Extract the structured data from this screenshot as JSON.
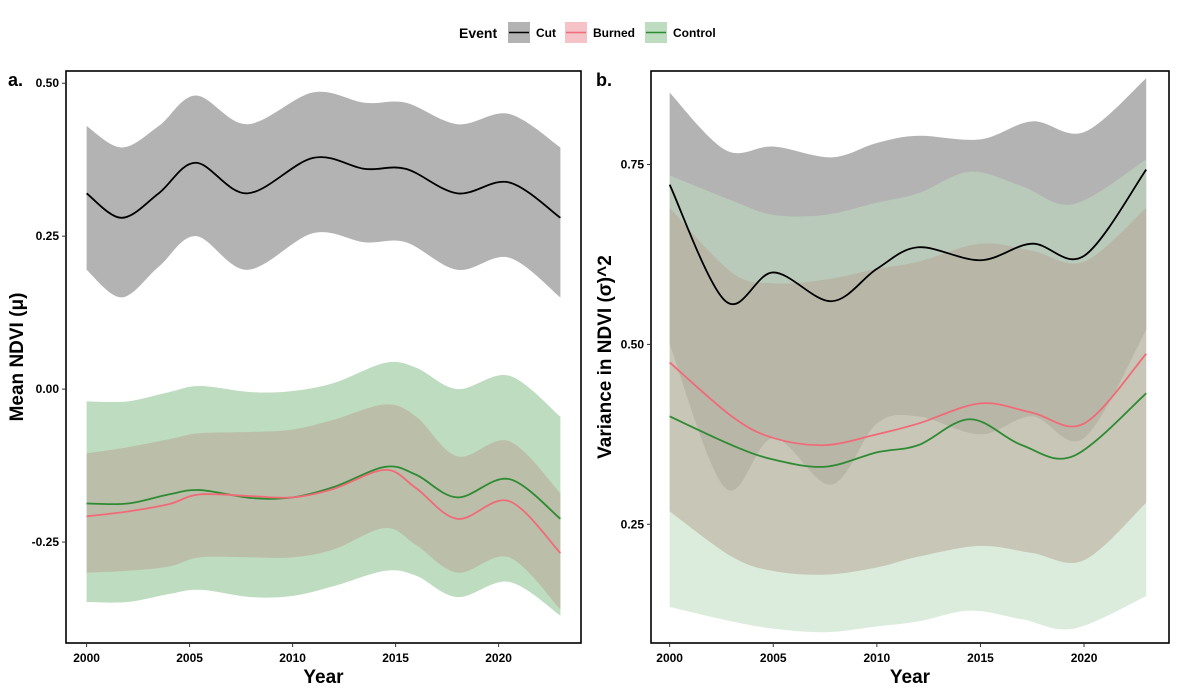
{
  "legend": {
    "title": "Event",
    "entries": [
      {
        "label": "Cut",
        "line": "#000000",
        "fill": "#b3b3b3"
      },
      {
        "label": "Burned",
        "line": "#f06a78",
        "fill": "#f5c2c8"
      },
      {
        "label": "Control",
        "line": "#2e8b34",
        "fill": "#bedcc0"
      }
    ]
  },
  "chart_data": [
    {
      "type": "area",
      "panel_label": "a.",
      "xlabel": "Year",
      "ylabel": "Mean NDVI (μ)",
      "xlim": [
        1999,
        2024
      ],
      "ylim": [
        -0.415,
        0.52
      ],
      "x_ticks": [
        2000,
        2005,
        2010,
        2015,
        2020
      ],
      "y_ticks": [
        0.5,
        0.25,
        0.0,
        -0.25
      ],
      "y_tick_labels": [
        "0.50",
        "0.25",
        "0.00",
        "-0.25"
      ],
      "x_tick_labels": [
        "2000",
        "2005",
        "2010",
        "2015",
        "2020"
      ],
      "series": [
        {
          "name": "Control",
          "color": "#2e8b34",
          "ribbon_color": "#bedcc0",
          "ribbon_opacity": 1,
          "x": [
            2000,
            2002,
            2004,
            2005.5,
            2008,
            2010,
            2012,
            2014.5,
            2016,
            2018,
            2020.5,
            2023
          ],
          "mean": [
            -0.187,
            -0.187,
            -0.172,
            -0.165,
            -0.178,
            -0.177,
            -0.16,
            -0.127,
            -0.14,
            -0.177,
            -0.147,
            -0.212
          ],
          "upper": [
            -0.02,
            -0.02,
            -0.005,
            0.005,
            -0.005,
            -0.003,
            0.01,
            0.043,
            0.035,
            0.0,
            0.022,
            -0.045
          ],
          "lower": [
            -0.348,
            -0.348,
            -0.335,
            -0.328,
            -0.34,
            -0.338,
            -0.322,
            -0.297,
            -0.305,
            -0.34,
            -0.315,
            -0.37
          ]
        },
        {
          "name": "Burned",
          "color": "#f06a78",
          "ribbon_color": "#b8a898",
          "ribbon_opacity": 0.55,
          "x": [
            2000,
            2002,
            2004,
            2005.5,
            2008,
            2010,
            2012,
            2014.5,
            2016,
            2018,
            2020.5,
            2023
          ],
          "mean": [
            -0.208,
            -0.2,
            -0.188,
            -0.172,
            -0.175,
            -0.177,
            -0.163,
            -0.132,
            -0.162,
            -0.212,
            -0.183,
            -0.268
          ],
          "upper": [
            -0.105,
            -0.095,
            -0.082,
            -0.072,
            -0.07,
            -0.066,
            -0.05,
            -0.025,
            -0.045,
            -0.11,
            -0.085,
            -0.17
          ],
          "lower": [
            -0.3,
            -0.297,
            -0.29,
            -0.275,
            -0.275,
            -0.275,
            -0.262,
            -0.227,
            -0.255,
            -0.3,
            -0.275,
            -0.36
          ]
        },
        {
          "name": "Cut",
          "color": "#000000",
          "ribbon_color": "#b3b3b3",
          "ribbon_opacity": 1,
          "x": [
            2000,
            2001.7,
            2003.5,
            2005.3,
            2007.8,
            2011,
            2013.5,
            2015.5,
            2018,
            2020.5,
            2023
          ],
          "mean": [
            0.32,
            0.28,
            0.32,
            0.37,
            0.32,
            0.378,
            0.36,
            0.36,
            0.32,
            0.338,
            0.28
          ],
          "upper": [
            0.43,
            0.395,
            0.43,
            0.48,
            0.433,
            0.485,
            0.468,
            0.468,
            0.433,
            0.45,
            0.395
          ],
          "lower": [
            0.195,
            0.15,
            0.2,
            0.25,
            0.195,
            0.255,
            0.24,
            0.24,
            0.195,
            0.215,
            0.15
          ]
        }
      ]
    },
    {
      "type": "area",
      "panel_label": "b.",
      "xlabel": "Year",
      "ylabel": "Variance in NDVI (σ)^2",
      "xlim": [
        1999.1,
        2024.1
      ],
      "ylim": [
        0.085,
        0.88
      ],
      "x_ticks": [
        2000,
        2005,
        2010,
        2015,
        2020
      ],
      "y_ticks": [
        0.75,
        0.5,
        0.25
      ],
      "y_tick_labels": [
        "0.75",
        "0.50",
        "0.25"
      ],
      "x_tick_labels": [
        "2000",
        "2005",
        "2010",
        "2015",
        "2020"
      ],
      "series": [
        {
          "name": "Cut",
          "color": "#000000",
          "ribbon_color": "#b3b3b3",
          "ribbon_opacity": 1,
          "x": [
            2000,
            2002.7,
            2005,
            2007.8,
            2010,
            2012,
            2015,
            2017.5,
            2020,
            2023
          ],
          "mean": [
            0.722,
            0.56,
            0.6,
            0.56,
            0.605,
            0.635,
            0.617,
            0.64,
            0.623,
            0.743
          ],
          "upper": [
            0.85,
            0.77,
            0.775,
            0.76,
            0.78,
            0.79,
            0.785,
            0.81,
            0.795,
            0.87
          ],
          "lower": [
            0.5,
            0.3,
            0.37,
            0.305,
            0.39,
            0.4,
            0.375,
            0.4,
            0.37,
            0.52
          ]
        },
        {
          "name": "Control",
          "color": "#2e8b34",
          "ribbon_color": "#bedcc0",
          "ribbon_opacity": 0.55,
          "x": [
            2000,
            2003,
            2005,
            2007.5,
            2010,
            2012,
            2014.5,
            2017,
            2019.5,
            2023
          ],
          "mean": [
            0.4,
            0.36,
            0.34,
            0.33,
            0.35,
            0.36,
            0.396,
            0.36,
            0.345,
            0.432
          ],
          "upper": [
            0.735,
            0.7,
            0.68,
            0.68,
            0.697,
            0.71,
            0.74,
            0.72,
            0.695,
            0.757
          ],
          "lower": [
            0.135,
            0.115,
            0.105,
            0.1,
            0.108,
            0.115,
            0.13,
            0.118,
            0.105,
            0.15
          ]
        },
        {
          "name": "Burned",
          "color": "#f06a78",
          "ribbon_color": "#b8a898",
          "ribbon_opacity": 0.55,
          "x": [
            2000,
            2003,
            2005,
            2007.5,
            2010,
            2012,
            2015,
            2017.5,
            2020,
            2023
          ],
          "mean": [
            0.475,
            0.4,
            0.37,
            0.36,
            0.375,
            0.39,
            0.418,
            0.405,
            0.39,
            0.487
          ],
          "upper": [
            0.69,
            0.6,
            0.585,
            0.59,
            0.605,
            0.615,
            0.64,
            0.63,
            0.615,
            0.69
          ],
          "lower": [
            0.268,
            0.205,
            0.185,
            0.18,
            0.19,
            0.205,
            0.22,
            0.21,
            0.2,
            0.28
          ]
        }
      ]
    }
  ]
}
